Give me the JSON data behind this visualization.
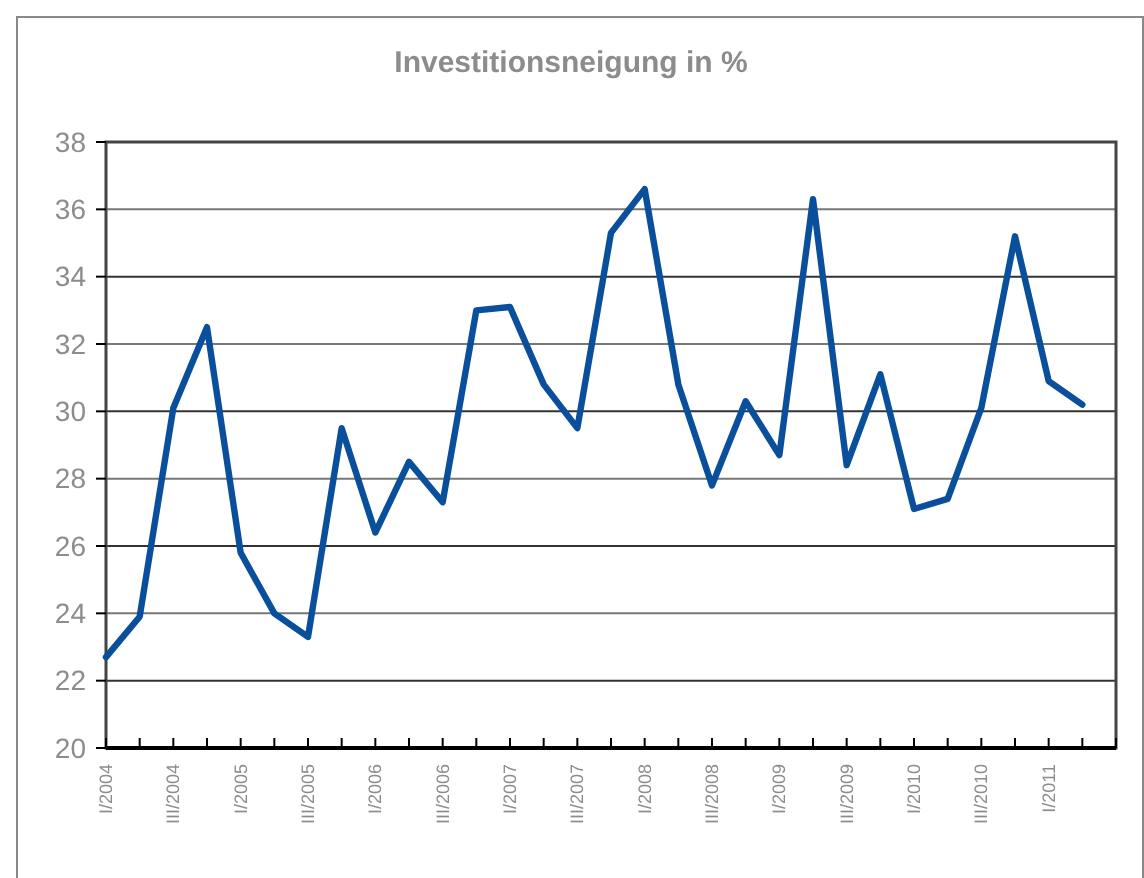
{
  "chart_data": {
    "type": "line",
    "title": "Investitionsneigung in %",
    "categories": [
      "I/2004",
      null,
      "III/2004",
      null,
      "I/2005",
      null,
      "III/2005",
      null,
      "I/2006",
      null,
      "III/2006",
      null,
      "I/2007",
      null,
      "III/2007",
      null,
      "I/2008",
      null,
      "III/2008",
      null,
      "I/2009",
      null,
      "III/2009",
      null,
      "I/2010",
      null,
      "III/2010",
      null,
      "I/2011",
      null
    ],
    "series": [
      {
        "color": "#0a4f9c",
        "values": [
          22.7,
          23.9,
          30.1,
          32.5,
          25.8,
          24.0,
          23.3,
          29.5,
          26.4,
          28.5,
          27.3,
          33.0,
          33.1,
          30.8,
          29.5,
          35.3,
          36.6,
          30.8,
          27.8,
          30.3,
          28.7,
          36.3,
          28.4,
          31.1,
          27.1,
          27.4,
          30.1,
          35.2,
          30.9,
          30.2
        ]
      }
    ],
    "ylim": [
      20,
      38
    ],
    "yticks": [
      20,
      22,
      24,
      26,
      28,
      30,
      32,
      34,
      36,
      38
    ],
    "grid": "y",
    "marker": "none",
    "line_style": "solid"
  }
}
